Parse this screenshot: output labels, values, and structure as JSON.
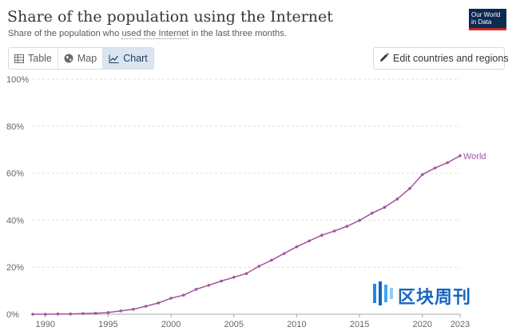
{
  "header": {
    "title": "Share of the population using the Internet",
    "subtitle_pre": "Share of the population who ",
    "subtitle_link": "used the Internet",
    "subtitle_post": " in the last three months.",
    "logo_line1": "Our World",
    "logo_line2": "in Data"
  },
  "tabs": [
    {
      "label": "Table",
      "icon": "table-icon"
    },
    {
      "label": "Map",
      "icon": "globe-icon"
    },
    {
      "label": "Chart",
      "icon": "line-chart-icon",
      "active": true
    }
  ],
  "edit_button": {
    "label": "Edit countries and regions",
    "icon": "pencil-icon"
  },
  "watermark": {
    "text": "区块周刊"
  },
  "colors": {
    "series": "#a2559c",
    "grid": "#dddddd",
    "active_tab": "#dbe5f0",
    "logo_bg": "#0b2a52",
    "logo_bar": "#ce261e",
    "watermark": "#1565c0"
  },
  "chart_data": {
    "type": "line",
    "ylim": [
      0,
      100
    ],
    "xlim": [
      1989,
      2023
    ],
    "y_ticks": [
      0,
      20,
      40,
      60,
      80,
      100
    ],
    "y_tick_labels": [
      "0%",
      "20%",
      "40%",
      "60%",
      "80%",
      "100%"
    ],
    "x_ticks": [
      1990,
      1995,
      2000,
      2005,
      2010,
      2015,
      2020,
      2023
    ],
    "x_tick_labels": [
      "1990",
      "1995",
      "2000",
      "2005",
      "2010",
      "2015",
      "2020",
      "2023"
    ],
    "grid": "horizontal-dashed",
    "series": [
      {
        "name": "World",
        "x": [
          1989,
          1990,
          1991,
          1992,
          1993,
          1994,
          1995,
          1996,
          1997,
          1998,
          1999,
          2000,
          2001,
          2002,
          2003,
          2004,
          2005,
          2006,
          2007,
          2008,
          2009,
          2010,
          2011,
          2012,
          2013,
          2014,
          2015,
          2016,
          2017,
          2018,
          2019,
          2020,
          2021,
          2022,
          2023
        ],
        "y": [
          0,
          0,
          0.1,
          0.1,
          0.3,
          0.4,
          0.7,
          1.4,
          2.1,
          3.4,
          4.8,
          6.8,
          8.1,
          10.6,
          12.3,
          14.1,
          15.7,
          17.3,
          20.4,
          23.0,
          25.8,
          28.7,
          31.2,
          33.6,
          35.4,
          37.4,
          39.9,
          43.0,
          45.5,
          49.0,
          53.5,
          59.4,
          62.2,
          64.5,
          67.4
        ]
      }
    ]
  }
}
